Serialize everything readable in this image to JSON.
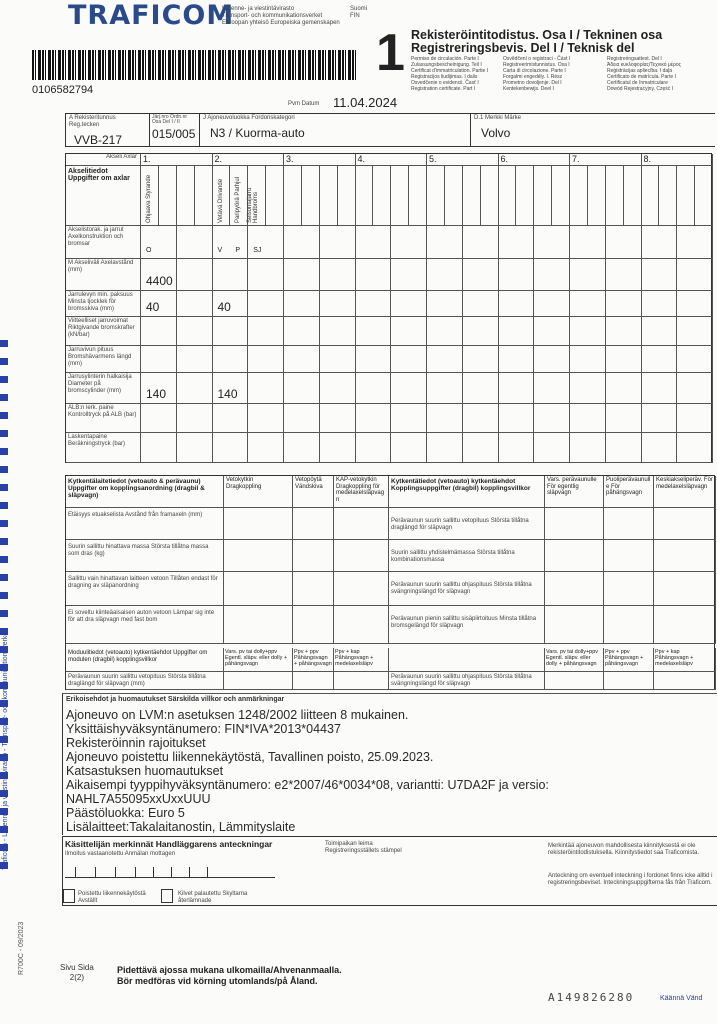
{
  "header": {
    "logo": "TRAFICOM",
    "agency": [
      "Liikenne- ja viestintävirasto",
      "Transport- och kommunikationsverket",
      "Euroopan yhteisö   Europeiska gemenskapen"
    ],
    "country": "Suomi FIN",
    "barcode_number": "0106582794",
    "date_label": "Pvm Datum",
    "date": "11.04.2024",
    "doc_number": "1",
    "title_fi": "Rekisteröintitodistus. Osa I / Tekninen osa",
    "title_sv": "Registreringsbevis. Del I / Teknisk del",
    "translations": [
      "Permiso de circulación. Parte I",
      "Osvědčení o registraci - Část I",
      "Registreringsattest. Del I",
      "Zulassungsbescheinigung. Teil I",
      "Registreerimistunnistus. Osa I",
      "Άδεια κυκλοφορίας/Τεχνικό μέρος",
      "Certificat d'immatriculation. Partie I",
      "Carta di circolazione. Parte I",
      "Reģistrācijas apliecība. I daļa",
      "Registracijos liudijimas. I dalis",
      "Forgalmi engedély. I. Rész",
      "Certificato de matrícula. Parte I",
      "Osvedčenie o evidencii. Časť I",
      "Prometno dovoljenje. Del I",
      "Certificatul de înmatriculare",
      "Registration certificate. Part I",
      "Kentekenbewijs. Deel I",
      "Dowód Rejestracyjny. Część I"
    ]
  },
  "fields": {
    "reg_label": "A Rekisteritunnus Reg.tecken",
    "reg": "VVB-217",
    "serial_label": "Järj.nro Ordn.nr Osa Del I / II",
    "serial": "015/005",
    "category_label": "J Ajoneuvoluokka Fordonskategori",
    "category": "N3 / Kuorma-auto",
    "make_label": "D.1 Merkki Märke",
    "make": "Volvo"
  },
  "axles": {
    "header_label": "Akseli Axlar",
    "numbers": [
      "1.",
      "2.",
      "3.",
      "4.",
      "5.",
      "6.",
      "7.",
      "8."
    ],
    "section_title": "Akselitiedot Uppgifter om axlar",
    "sub_labels_1": [
      "Ohjaava Styrande"
    ],
    "sub_labels_2": [
      "Vetävä Drivande",
      "Paripyörä Parhjul",
      "Seisontajarru Handbroms"
    ],
    "rows": [
      {
        "label": "Akselistorak. ja jarrut Axelkonstruktion och bromsar",
        "values": [
          "O",
          "",
          "",
          "",
          "V",
          "P",
          "SJ",
          ""
        ]
      },
      {
        "label": "M Akseliväli Axelavstånd (mm)",
        "values": [
          "4400",
          "",
          "",
          "",
          "",
          "",
          "",
          ""
        ]
      },
      {
        "label": "Jarrulevyn min. paksuus Minsta tjocklek för bromsskiva (mm)",
        "values": [
          "40",
          "",
          "",
          "",
          "40",
          "",
          "",
          ""
        ]
      },
      {
        "label": "Viitteelliset jarruvoimat Riktgivande bromskrafter (kN/bar)",
        "values": []
      },
      {
        "label": "Jarruvivun pituus Bromshävarmens längd (mm)",
        "values": []
      },
      {
        "label": "Jarrusylinterin halkaisija Diameter på bromscylinder (mm)",
        "values": [
          "140",
          "",
          "",
          "",
          "140",
          "",
          "",
          ""
        ]
      },
      {
        "label": "ALB:n lerk. paine Kontrolltryck på ALB (bar)",
        "values": []
      },
      {
        "label": "Laskentapaine Beräkningstryck (bar)",
        "values": []
      }
    ]
  },
  "coupling": {
    "title_left": "Kytkentälaitetiedot (vetoauto & perävaunu) Uppgifter om kopplingsanordning (dragbil & släpvagn)",
    "cols_left": [
      "Vetokytkin Dragkoppling",
      "Vetopöytä Vändskiva",
      "KAP-vetokytkin Dragkoppling för medelaxelsläpvagn"
    ],
    "title_right": "Kytkentätiedot (vetoauto) kytkentäehdot Kopplingsuppgifter (dragbil) kopplingsvillkor",
    "cols_right": [
      "Vars. perävaunulle För egentlig släpvagn",
      "Puoliperävaunulle För påhängsvagn",
      "Keskiakseliperäv. För medelaxelsläpvagn"
    ],
    "rows_left": [
      "Etäisyys etuakselista Avstånd från framaxeln (mm)",
      "Suurin sallittu hinattava massa Största tillåtna massa som dras (kg)",
      "Sallittu vain hinattavan laitteen vetoon Tillåten endast för dragning av släpanordning",
      "Ei soveltu kiinteäaisaisen auton vetoon Lämpar sig inte för att dra släpvagn med fast bom"
    ],
    "rows_right": [
      "Perävaunun suurin sallittu vetopituus Största tillåtna draglängd för släpvagn",
      "Suurin sallittu yhdistelmämassa Största tillåtna kombinationsmassa",
      "Perävaunun suurin sallittu ohjaspituus Största tillåtna svängningslängd för släpvagn",
      "Perävaunun pienin sallittu sisäpiirtoituus Minsta tillåtna bromsgelängd för släpvagn"
    ],
    "module_title": "Moduulitiedot (vetoauto) kytkentäehdot Uppgifter om modulen (dragbil) kopplingsvillkor",
    "module_cols": [
      "Vars. pv tai dolly+ppv Egentl. släpv. eller dolly + påhängsvagn",
      "Ppv + ppv Påhängsvagn + påhängsvagn",
      "Ppv + kap Påhängsvagn + medelaxelsläpv"
    ],
    "module_row_left": "Perävaunun suurin sallittu vetopituus Största tillåtna draglängd för släpvagn (mm)",
    "module_row_right": "Perävaunun suurin sallittu ohjaspituus Största tillåtna svängningslängd för släpvagn"
  },
  "remarks": {
    "title": "Erikoisehdot ja huomautukset Särskilda villkor och anmärkningar",
    "lines": [
      "Ajoneuvo on LVM:n asetuksen 1248/2002 liitteen 8 mukainen.",
      "Yksittäishyväksyntänumero: FIN*IVA*2013*04437",
      "Rekisteröinnin rajoitukset",
      "Ajoneuvo poistettu liikennekäytöstä, Tavallinen poisto, 25.09.2023.",
      "Katsastuksen huomautukset",
      "Aikaisempi tyyppihyväksyntänumero: e2*2007/46*0034*08, variantti: U7DA2F ja versio:",
      "NAHL7A55095xxUxxUUU",
      "Päästöluokka: Euro 5",
      "Lisälaitteet:Takalaitanostin, Lämmityslaite"
    ]
  },
  "handler": {
    "title": "Käsittelijän merkinnät Handläggarens anteckningar",
    "notice": "Ilmoitus vastaanotettu Anmälan mottagen",
    "stamp": "Toimipaikan leima Registreringsställets stämpel",
    "removed": "Poistettu liikennekäytöstä Avställt",
    "plates": "Kilvet palautettu Skyltarna återlämnade",
    "pledge_fi": "Merkintää ajoneuvon mahdollisesta kiinnityksestä ei ole rekisteröintitodistuksella. Kiinnitystiedot saa Traficomista.",
    "pledge_sv": "Anteckning om eventuell inteckning i fordonet finns icke alltid i registreringsbeviset. Inteckningsuppgifterna fås från Traficom."
  },
  "footer": {
    "page_label": "Sivu Sida",
    "page": "2(2)",
    "notice_fi": "Pidettävä ajossa mukana ulkomailla/Ahvenanmaalla.",
    "notice_sv": "Bör medföras vid körning utomlands/på Åland.",
    "serial": "A149826280",
    "turn": "Käännä Vänd",
    "form_code": "R700C - 09/2023",
    "side_text": "Traficom - Liikenne- ja viestintävirasto - Transport- och kommunikationsverket"
  },
  "colors": {
    "logo": "#2a4a8a",
    "security_strip": "#2940a8"
  }
}
